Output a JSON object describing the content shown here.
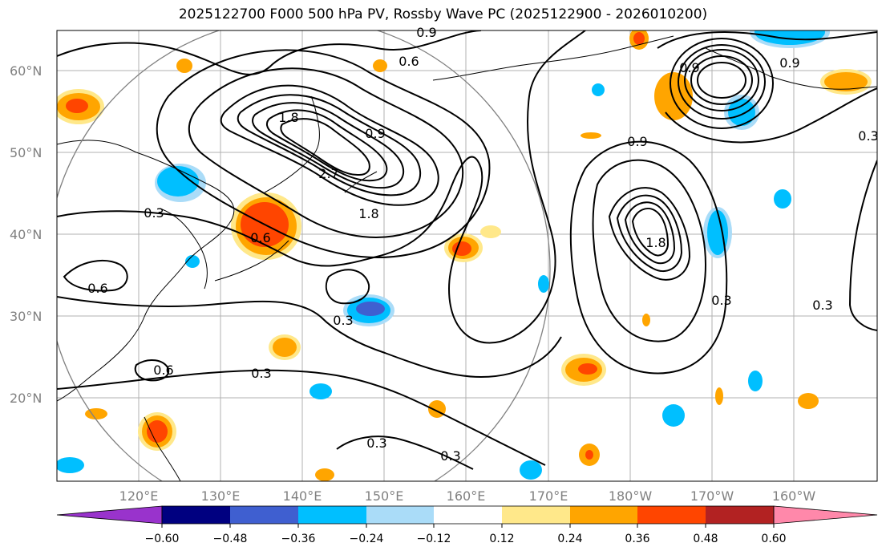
{
  "title": "2025122700 F000 500 hPa PV, Rossby Wave PC (2025122900 - 2026010200)",
  "lat_ticks": [
    "60°N",
    "50°N",
    "40°N",
    "30°N",
    "20°N"
  ],
  "lon_ticks": [
    "120°E",
    "130°E",
    "140°E",
    "150°E",
    "160°E",
    "170°E",
    "180°W",
    "170°W",
    "160°W"
  ],
  "contour_labels": [
    "0.9",
    "0.6",
    "1.8",
    "0.9",
    "2.7",
    "0.9",
    "1.8",
    "0.9",
    "0.3",
    "0.6",
    "1.8",
    "0.3",
    "0.6",
    "0.3",
    "0.6",
    "0.3",
    "0.3",
    "0.3",
    "0.3",
    "0.9",
    "0.3"
  ],
  "colorbar": {
    "ticks": [
      "−0.60",
      "−0.48",
      "−0.36",
      "−0.24",
      "−0.12",
      "0.12",
      "0.24",
      "0.36",
      "0.48",
      "0.60"
    ],
    "colors": [
      "#9933cc",
      "#000080",
      "#3f5fd0",
      "#00bfff",
      "#aadcf8",
      "#ffffff",
      "#ffe88a",
      "#ffa500",
      "#ff4500",
      "#b22222",
      "#ff88aa"
    ]
  },
  "anomaly_colors": {
    "pos_light": "#ffe88a",
    "pos_mid": "#ffa500",
    "pos_strong": "#ff4500",
    "neg_light": "#aadcf8",
    "neg_mid": "#00bfff",
    "neg_strong": "#3f5fd0"
  }
}
